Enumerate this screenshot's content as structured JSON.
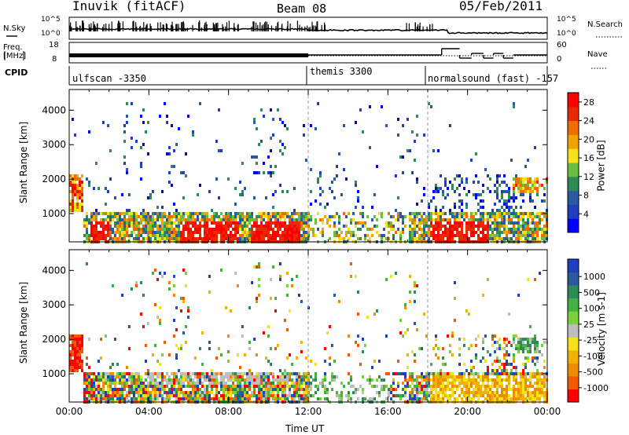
{
  "header": {
    "station": "Inuvik (fitACF)",
    "beam": "Beam 08",
    "date": "05/Feb/2011"
  },
  "summary": {
    "nsky_label": "N.Sky",
    "nsky_ticks": [
      "10^5",
      "10^0"
    ],
    "nsearch_label": "N.Search",
    "nsearch_ticks": [
      "10^5",
      "10^0"
    ],
    "freq_label_1": "Freq.",
    "freq_label_2": "[MHz]",
    "freq_ticks": [
      "18",
      "8"
    ],
    "nave_label": "Nave",
    "nave_ticks": [
      "60",
      "0"
    ],
    "cpid_label": "CPID",
    "cpid_segments": [
      {
        "start_hour": 0,
        "label": "ulfscan -3350"
      },
      {
        "start_hour": 12,
        "label": "themis 3300"
      },
      {
        "start_hour": 18,
        "label": "normalsound (fast) -157"
      }
    ]
  },
  "chart_data": [
    {
      "type": "heatmap",
      "title": "",
      "xlabel": "",
      "ylabel": "Slant Range [km]",
      "xlim": [
        0,
        24
      ],
      "ylim": [
        180,
        4600
      ],
      "x_ticks": [
        "00:00",
        "04:00",
        "08:00",
        "12:00",
        "16:00",
        "20:00",
        "00:00"
      ],
      "y_ticks": [
        1000,
        2000,
        3000,
        4000
      ],
      "colorbar": {
        "label": "Power [dB]",
        "ticks": [
          "4",
          "8",
          "12",
          "16",
          "20",
          "24",
          "28"
        ],
        "range": [
          0,
          30
        ],
        "colors": [
          "#0000ff",
          "#1f3fbf",
          "#2b5aa0",
          "#2e8b57",
          "#6abf40",
          "#f4e21a",
          "#f0a500",
          "#f06e00",
          "#e82a00",
          "#ff0000"
        ]
      }
    },
    {
      "type": "heatmap",
      "title": "",
      "xlabel": "Time UT",
      "ylabel": "Slant Range [km]",
      "xlim": [
        0,
        24
      ],
      "ylim": [
        180,
        4600
      ],
      "x_ticks": [
        "00:00",
        "04:00",
        "08:00",
        "12:00",
        "16:00",
        "20:00",
        "00:00"
      ],
      "y_ticks": [
        1000,
        2000,
        3000,
        4000
      ],
      "colorbar": {
        "label": "Velocity [m s-1]",
        "ticks": [
          "1000",
          "500",
          "100",
          "25",
          "-25",
          "-100",
          "-500",
          "-1000"
        ],
        "colors": [
          "#1f3fbf",
          "#2b5aa0",
          "#2e8b57",
          "#44b144",
          "#7ad13a",
          "#bebebe",
          "#f4e21a",
          "#f0b400",
          "#f08c00",
          "#f05a00",
          "#ff0000"
        ]
      }
    }
  ]
}
